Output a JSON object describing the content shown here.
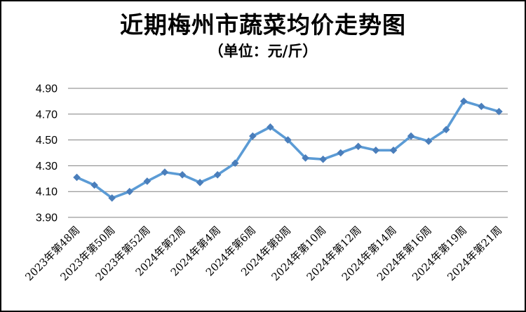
{
  "chart_data": {
    "type": "line",
    "title": "近期梅州市蔬菜均价走势图",
    "subtitle": "（单位：元/斤）",
    "y_tick_labels": [
      "4.90",
      "4.70",
      "4.50",
      "4.30",
      "4.10",
      "3.90"
    ],
    "ylim": [
      3.9,
      4.9
    ],
    "x_tick_labels": [
      "2023年第48周",
      "2023年第50周",
      "2023年第52周",
      "2024年第2周",
      "2024年第4周",
      "2024年第6周",
      "2024年第8周",
      "2024年第10周",
      "2024年第12周",
      "2024年第14周",
      "2024年第16周",
      "2024年第19周",
      "2024年第21周"
    ],
    "x_label_every": 2,
    "values": [
      4.21,
      4.15,
      4.05,
      4.1,
      4.18,
      4.25,
      4.23,
      4.17,
      4.23,
      4.32,
      4.53,
      4.6,
      4.5,
      4.36,
      4.35,
      4.4,
      4.45,
      4.42,
      4.42,
      4.53,
      4.49,
      4.58,
      4.8,
      4.76,
      4.72
    ],
    "grid": true,
    "legend": "none",
    "line_color": "#5B9BD5",
    "marker": "diamond",
    "marker_color": "#4A7EBB",
    "gridline_color": "#808080"
  }
}
